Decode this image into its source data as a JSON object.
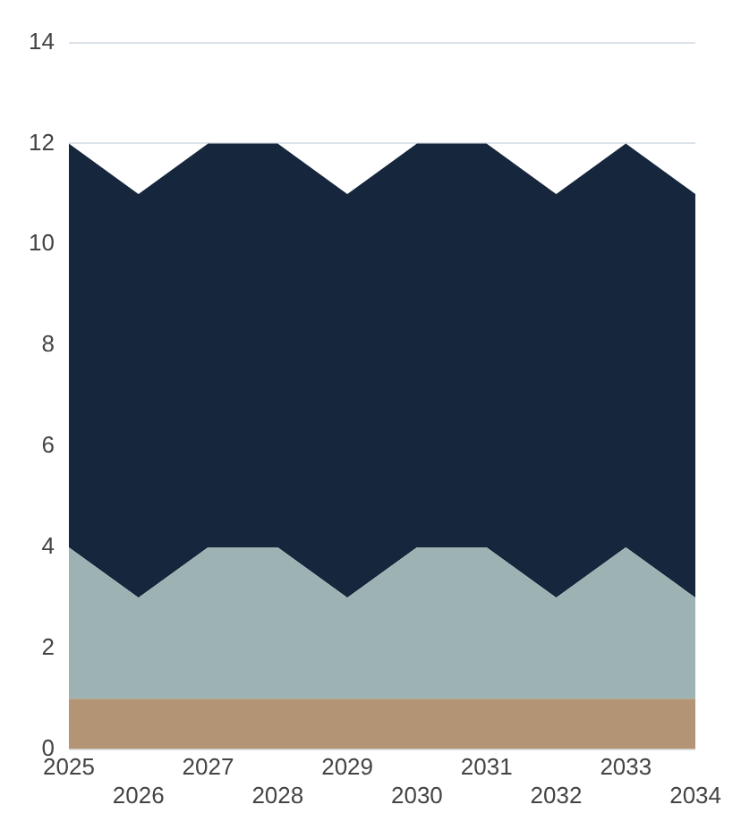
{
  "chart_data": {
    "type": "area",
    "stacked": true,
    "categories": [
      "2025",
      "2026",
      "2027",
      "2028",
      "2029",
      "2030",
      "2031",
      "2032",
      "2033",
      "2034"
    ],
    "series": [
      {
        "color": "#b39475",
        "values": [
          1,
          1,
          1,
          1,
          1,
          1,
          1,
          1,
          1,
          1
        ]
      },
      {
        "color": "#9db3b3",
        "values": [
          3,
          2,
          3,
          3,
          2,
          3,
          3,
          2,
          3,
          2
        ]
      },
      {
        "color": "#16263d",
        "values": [
          8,
          8,
          8,
          8,
          8,
          8,
          8,
          8,
          8,
          8
        ]
      }
    ],
    "ylim": [
      0,
      14
    ],
    "yticks": [
      0,
      2,
      4,
      6,
      8,
      10,
      12,
      14
    ],
    "grid": "y",
    "legend": false
  }
}
